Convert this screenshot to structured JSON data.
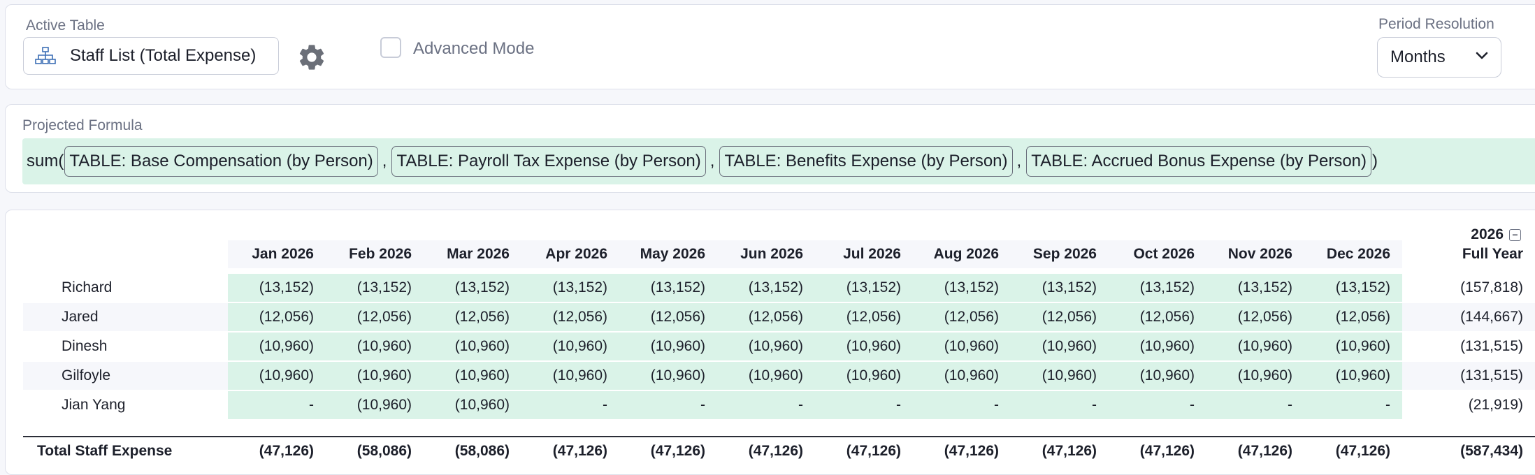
{
  "active_table": {
    "label": "Active Table",
    "value": "Staff List (Total Expense)",
    "icon": "hierarchy-icon"
  },
  "settings": {
    "icon": "gear-icon"
  },
  "advanced_mode": {
    "label": "Advanced Mode",
    "checked": false
  },
  "period_resolution": {
    "label": "Period Resolution",
    "value": "Months",
    "icon": "chevron-down-icon"
  },
  "formula": {
    "label": "Projected Formula",
    "prefix": "sum(",
    "separator": ",",
    "suffix": ")",
    "tokens": [
      "TABLE: Base Compensation (by Person)",
      "TABLE: Payroll Tax Expense (by Person)",
      "TABLE: Benefits Expense (by Person)",
      "TABLE: Accrued Bonus Expense (by Person)"
    ]
  },
  "table": {
    "year": "2026",
    "columns": [
      "Jan 2026",
      "Feb 2026",
      "Mar 2026",
      "Apr 2026",
      "May 2026",
      "Jun 2026",
      "Jul 2026",
      "Aug 2026",
      "Sep 2026",
      "Oct 2026",
      "Nov 2026",
      "Dec 2026",
      "Full Year"
    ],
    "rows": [
      {
        "name": "Richard",
        "values": [
          "(13,152)",
          "(13,152)",
          "(13,152)",
          "(13,152)",
          "(13,152)",
          "(13,152)",
          "(13,152)",
          "(13,152)",
          "(13,152)",
          "(13,152)",
          "(13,152)",
          "(13,152)",
          "(157,818)"
        ]
      },
      {
        "name": "Jared",
        "values": [
          "(12,056)",
          "(12,056)",
          "(12,056)",
          "(12,056)",
          "(12,056)",
          "(12,056)",
          "(12,056)",
          "(12,056)",
          "(12,056)",
          "(12,056)",
          "(12,056)",
          "(12,056)",
          "(144,667)"
        ]
      },
      {
        "name": "Dinesh",
        "values": [
          "(10,960)",
          "(10,960)",
          "(10,960)",
          "(10,960)",
          "(10,960)",
          "(10,960)",
          "(10,960)",
          "(10,960)",
          "(10,960)",
          "(10,960)",
          "(10,960)",
          "(10,960)",
          "(131,515)"
        ]
      },
      {
        "name": "Gilfoyle",
        "values": [
          "(10,960)",
          "(10,960)",
          "(10,960)",
          "(10,960)",
          "(10,960)",
          "(10,960)",
          "(10,960)",
          "(10,960)",
          "(10,960)",
          "(10,960)",
          "(10,960)",
          "(10,960)",
          "(131,515)"
        ]
      },
      {
        "name": "Jian Yang",
        "values": [
          "-",
          "(10,960)",
          "(10,960)",
          "-",
          "-",
          "-",
          "-",
          "-",
          "-",
          "-",
          "-",
          "-",
          "(21,919)"
        ]
      }
    ],
    "total": {
      "name": "Total Staff Expense",
      "values": [
        "(47,126)",
        "(58,086)",
        "(58,086)",
        "(47,126)",
        "(47,126)",
        "(47,126)",
        "(47,126)",
        "(47,126)",
        "(47,126)",
        "(47,126)",
        "(47,126)",
        "(47,126)",
        "(587,434)"
      ]
    }
  },
  "colors": {
    "accent_green": "#daf3e8",
    "border": "#dde0ea",
    "muted_text": "#6b7183"
  }
}
